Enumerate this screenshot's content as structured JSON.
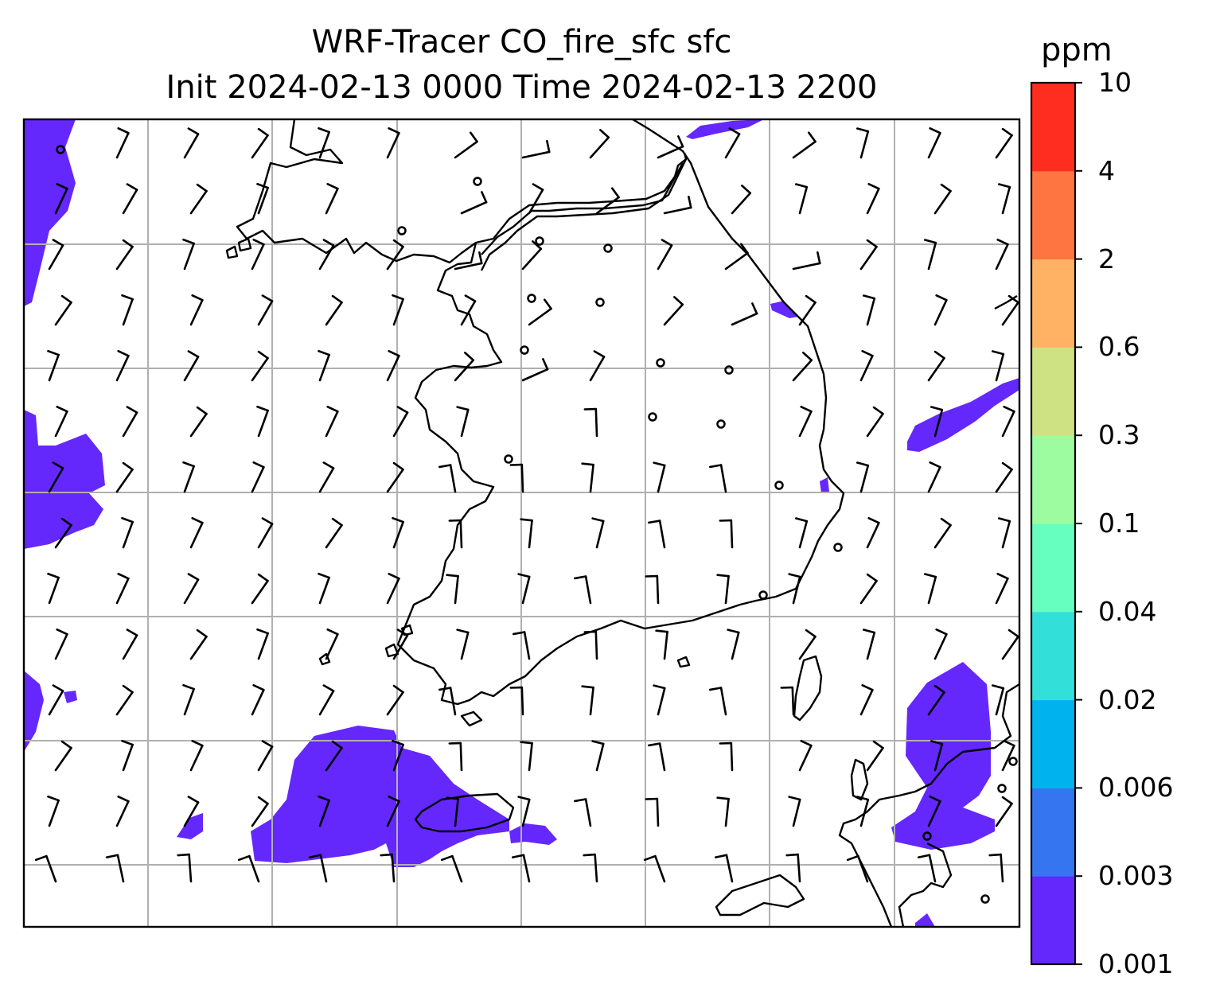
{
  "title": {
    "line1": "WRF-Tracer CO_fire_sfc sfc",
    "line2": "Init 2024-02-13 0000 Time 2024-02-13 2200"
  },
  "colorbar": {
    "unit": "ppm",
    "ticks": [
      "0.001",
      "0.003",
      "0.006",
      "0.02",
      "0.04",
      "0.1",
      "0.3",
      "0.6",
      "2",
      "4",
      "10"
    ],
    "colors": [
      "#6428fc",
      "#3575f0",
      "#00b3ee",
      "#33e0d9",
      "#66ffc0",
      "#9cfc9f",
      "#cfe283",
      "#ffb264",
      "#ff7541",
      "#ff2d20"
    ]
  },
  "plume_color": "#6428fc",
  "map": {
    "gridlines": true,
    "coastline_color": "#000000",
    "grid_color": "#b0b0b0"
  }
}
